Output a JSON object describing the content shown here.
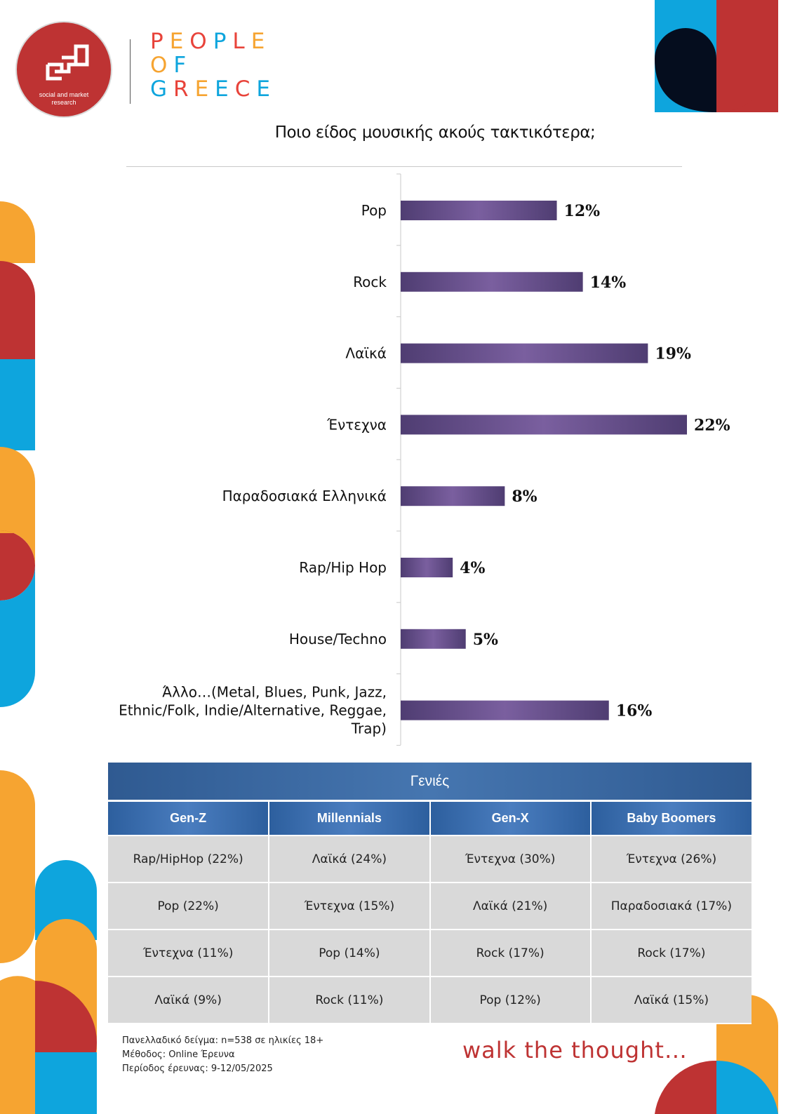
{
  "colors": {
    "red": "#be3333",
    "blue": "#0ea5dd",
    "orange": "#f6a431",
    "navy": "#050d1e",
    "bar_purple": "#6b5490",
    "table_header_blue": "#3a6aa8",
    "table_cell_gray": "#d9d9d9"
  },
  "logo": {
    "caption": "social and market research"
  },
  "brand": {
    "lines": [
      [
        {
          "ch": "P",
          "color": "#e8433a"
        },
        {
          "ch": "E",
          "color": "#f6a431"
        },
        {
          "ch": "O",
          "color": "#e8433a"
        },
        {
          "ch": "P",
          "color": "#0ea5dd"
        },
        {
          "ch": "L",
          "color": "#e8433a"
        },
        {
          "ch": "E",
          "color": "#f6a431"
        }
      ],
      [
        {
          "ch": "O",
          "color": "#f6a431"
        },
        {
          "ch": "F",
          "color": "#0ea5dd"
        }
      ],
      [
        {
          "ch": "G",
          "color": "#0ea5dd"
        },
        {
          "ch": "R",
          "color": "#e8433a"
        },
        {
          "ch": "E",
          "color": "#f6a431"
        },
        {
          "ch": "E",
          "color": "#0ea5dd"
        },
        {
          "ch": "C",
          "color": "#e8433a"
        },
        {
          "ch": "E",
          "color": "#0ea5dd"
        }
      ]
    ]
  },
  "chart_data": {
    "type": "bar",
    "orientation": "horizontal",
    "title": "Ποιο είδος μουσικής ακούς τακτικότερα;",
    "categories": [
      "Pop",
      "Rock",
      "Λαϊκά",
      "Έντεχνα",
      "Παραδοσιακά Ελληνικά",
      "Rap/Hip Hop",
      "House/Techno",
      "Άλλο…(Metal, Blues, Punk, Jazz, Ethnic/Folk, Indie/Alternative, Reggae, Trap)"
    ],
    "category_lines": [
      [
        "Pop"
      ],
      [
        "Rock"
      ],
      [
        "Λαϊκά"
      ],
      [
        "Έντεχνα"
      ],
      [
        "Παραδοσιακά Ελληνικά"
      ],
      [
        "Rap/Hip Hop"
      ],
      [
        "House/Techno"
      ],
      [
        "Άλλο…(Metal, Blues, Punk, Jazz,",
        "Ethnic/Folk, Indie/Alternative, Reggae,",
        "Trap)"
      ]
    ],
    "values": [
      12,
      14,
      19,
      22,
      8,
      4,
      5,
      16
    ],
    "value_labels": [
      "12%",
      "14%",
      "19%",
      "22%",
      "8%",
      "4%",
      "5%",
      "16%"
    ],
    "unit": "%",
    "xlim": [
      0,
      22
    ],
    "grid": false,
    "legend": "none"
  },
  "table": {
    "title": "Γενιές",
    "headers": [
      "Gen-Z",
      "Millennials",
      "Gen-X",
      "Baby Boomers"
    ],
    "rows": [
      [
        "Rap/HipHop (22%)",
        "Λαϊκά (24%)",
        "Έντεχνα (30%)",
        "Έντεχνα (26%)"
      ],
      [
        "Pop (22%)",
        "Έντεχνα (15%)",
        "Λαϊκά (21%)",
        "Παραδοσιακά (17%)"
      ],
      [
        "Έντεχνα (11%)",
        "Pop (14%)",
        "Rock (17%)",
        "Rock (17%)"
      ],
      [
        "Λαϊκά (9%)",
        "Rock (11%)",
        "Pop (12%)",
        "Λαϊκά (15%)"
      ]
    ]
  },
  "footnote": {
    "sample": "Πανελλαδικό δείγμα: n=538 σε ηλικίες 18+",
    "method": "Μέθοδος: Online Έρευνα",
    "period": "Περίοδος έρευνας: 9-12/05/2025"
  },
  "slogan": "walk the thought…"
}
